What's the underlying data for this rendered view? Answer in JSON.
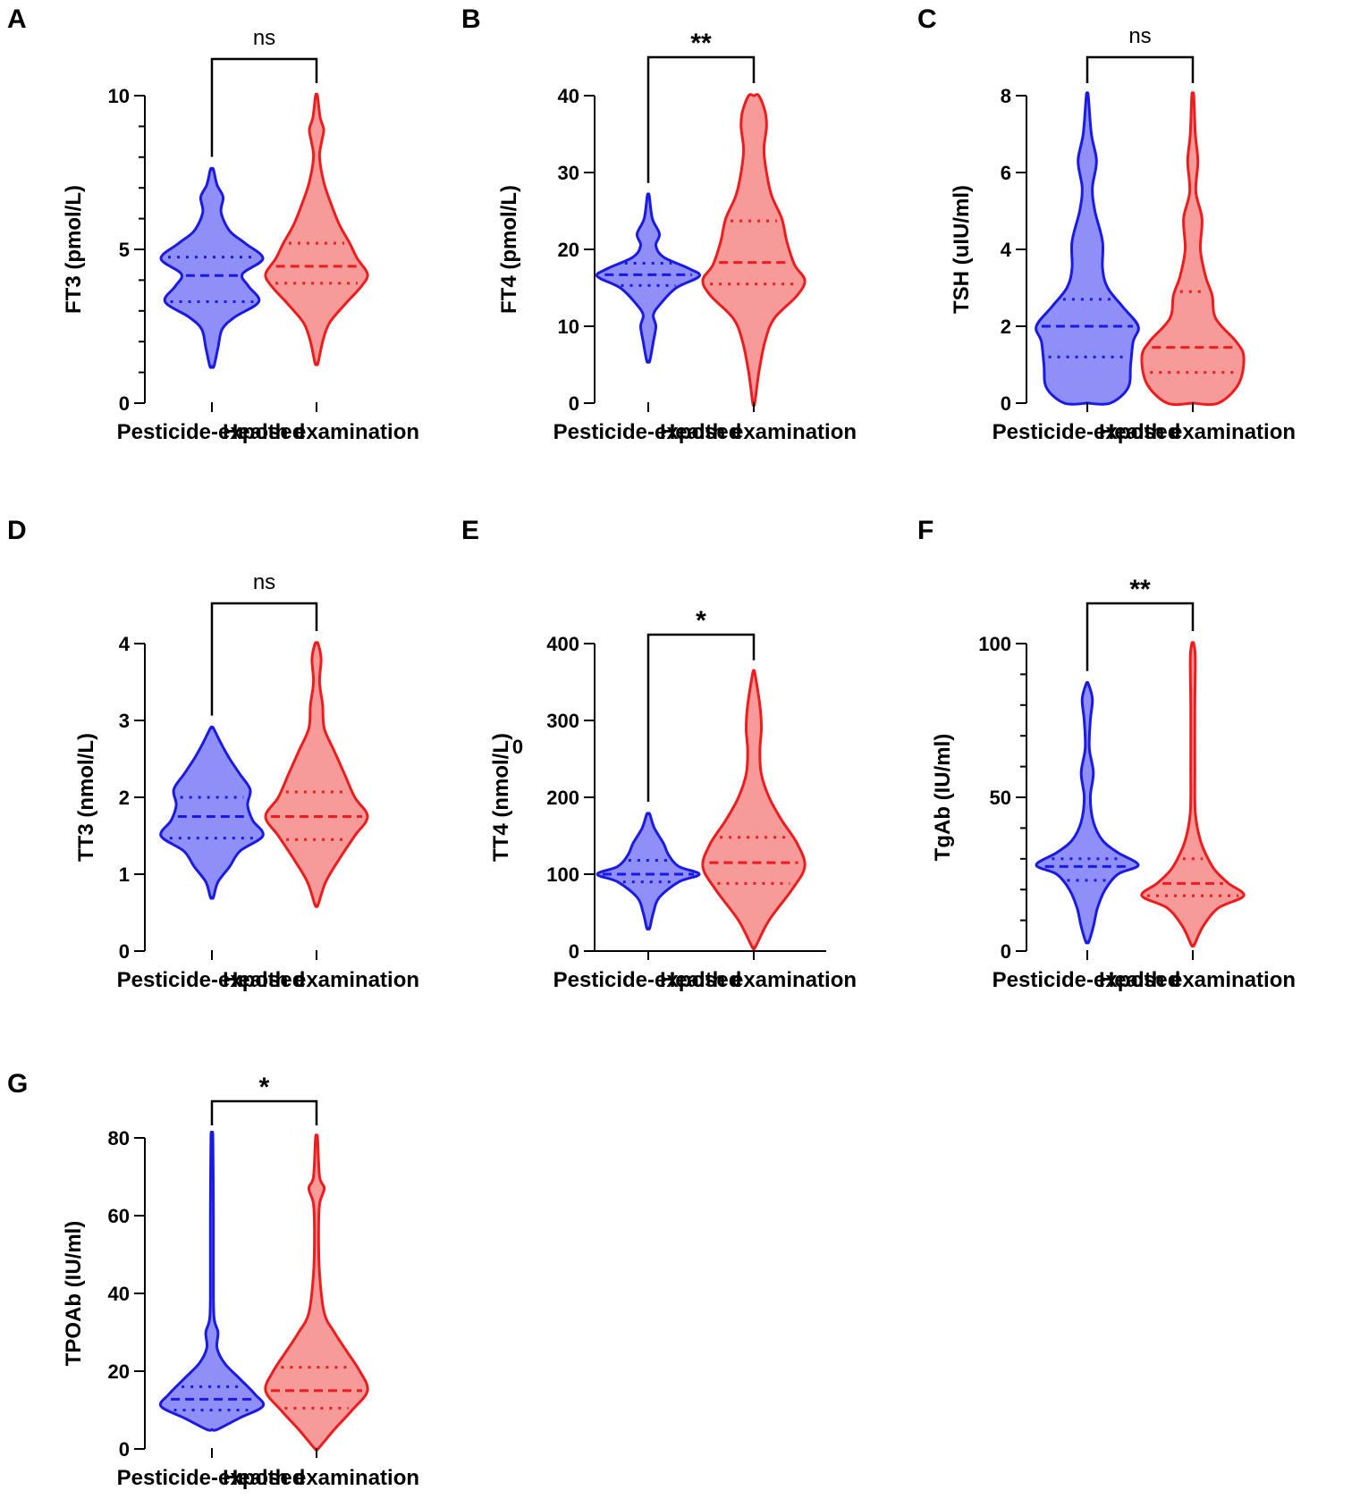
{
  "colors": {
    "pesticide_fill": "#8f8ff7",
    "pesticide_line": "#1a1ae6",
    "health_fill": "#f79a9a",
    "health_line": "#ee1c1c",
    "axis": "#000000"
  },
  "stray_text": "0",
  "chart_data": [
    {
      "panel": "A",
      "type": "violin",
      "ylabel": "FT3 (pmol/L)",
      "ylim": [
        0,
        10
      ],
      "yticks": [
        0,
        5,
        10
      ],
      "yticks_labels": [
        "0",
        "5",
        "10"
      ],
      "minor_tick_step": 1,
      "categories": [
        "Pesticide-exposed",
        "Health examination"
      ],
      "significance": "ns",
      "series": [
        {
          "name": "Pesticide-exposed",
          "min": 1.2,
          "max": 7.6,
          "median": 4.15,
          "q1": 3.3,
          "q3": 4.75,
          "profile": [
            [
              1.2,
              0.04
            ],
            [
              1.8,
              0.12
            ],
            [
              2.4,
              0.2
            ],
            [
              2.8,
              0.45
            ],
            [
              3.3,
              0.92
            ],
            [
              3.8,
              0.72
            ],
            [
              4.2,
              0.6
            ],
            [
              4.7,
              1.0
            ],
            [
              5.2,
              0.65
            ],
            [
              5.6,
              0.35
            ],
            [
              6.2,
              0.18
            ],
            [
              6.7,
              0.22
            ],
            [
              7.1,
              0.1
            ],
            [
              7.6,
              0.03
            ]
          ]
        },
        {
          "name": "Health examination",
          "min": 1.3,
          "max": 10,
          "median": 4.45,
          "q1": 3.9,
          "q3": 5.2,
          "profile": [
            [
              1.3,
              0.03
            ],
            [
              2.0,
              0.12
            ],
            [
              2.6,
              0.25
            ],
            [
              3.2,
              0.55
            ],
            [
              3.8,
              0.88
            ],
            [
              4.2,
              1.0
            ],
            [
              4.7,
              0.8
            ],
            [
              5.2,
              0.65
            ],
            [
              5.8,
              0.45
            ],
            [
              6.5,
              0.28
            ],
            [
              7.2,
              0.14
            ],
            [
              8.0,
              0.06
            ],
            [
              8.5,
              0.1
            ],
            [
              8.9,
              0.14
            ],
            [
              9.3,
              0.07
            ],
            [
              10.0,
              0.02
            ]
          ]
        }
      ]
    },
    {
      "panel": "B",
      "type": "violin",
      "ylabel": "FT4 (pmol/L)",
      "ylim": [
        0,
        40
      ],
      "yticks": [
        0,
        10,
        20,
        30,
        40
      ],
      "yticks_labels": [
        "0",
        "10",
        "20",
        "30",
        "40"
      ],
      "categories": [
        "Pesticide-exposed",
        "Health examination"
      ],
      "significance": "**",
      "series": [
        {
          "name": "Pesticide-exposed",
          "min": 5.5,
          "max": 27,
          "median": 16.7,
          "q1": 15.3,
          "q3": 18.2,
          "profile": [
            [
              5.5,
              0.03
            ],
            [
              8,
              0.1
            ],
            [
              10,
              0.15
            ],
            [
              11.5,
              0.1
            ],
            [
              13,
              0.25
            ],
            [
              15,
              0.55
            ],
            [
              16.5,
              1.0
            ],
            [
              17.5,
              0.8
            ],
            [
              19,
              0.3
            ],
            [
              20.5,
              0.15
            ],
            [
              22,
              0.22
            ],
            [
              24,
              0.08
            ],
            [
              27,
              0.02
            ]
          ]
        },
        {
          "name": "Health examination",
          "min": 0,
          "max": 40,
          "median": 18.3,
          "q1": 15.5,
          "q3": 23.7,
          "profile": [
            [
              0,
              0.02
            ],
            [
              4,
              0.1
            ],
            [
              8,
              0.22
            ],
            [
              11,
              0.4
            ],
            [
              14,
              0.85
            ],
            [
              16,
              1.0
            ],
            [
              18,
              0.8
            ],
            [
              21,
              0.65
            ],
            [
              24,
              0.55
            ],
            [
              27,
              0.35
            ],
            [
              30,
              0.25
            ],
            [
              33,
              0.2
            ],
            [
              36,
              0.25
            ],
            [
              38,
              0.22
            ],
            [
              40,
              0.1
            ]
          ]
        }
      ]
    },
    {
      "panel": "C",
      "type": "violin",
      "ylabel": "TSH (uIU/ml)",
      "ylim": [
        0,
        8
      ],
      "yticks": [
        0,
        2,
        4,
        6,
        8
      ],
      "yticks_labels": [
        "0",
        "2",
        "4",
        "6",
        "8"
      ],
      "categories": [
        "Pesticide-exposed",
        "Health examination"
      ],
      "significance": "ns",
      "series": [
        {
          "name": "Pesticide-exposed",
          "min": 0,
          "max": 8,
          "median": 2.0,
          "q1": 1.2,
          "q3": 2.7,
          "profile": [
            [
              0,
              0.45
            ],
            [
              0.4,
              0.8
            ],
            [
              1.0,
              0.85
            ],
            [
              1.6,
              0.9
            ],
            [
              2.0,
              1.0
            ],
            [
              2.5,
              0.7
            ],
            [
              3.0,
              0.4
            ],
            [
              3.5,
              0.3
            ],
            [
              4.2,
              0.3
            ],
            [
              5.0,
              0.15
            ],
            [
              5.6,
              0.1
            ],
            [
              6.3,
              0.18
            ],
            [
              7.0,
              0.08
            ],
            [
              8.0,
              0.02
            ]
          ]
        },
        {
          "name": "Health examination",
          "min": 0,
          "max": 8,
          "median": 1.45,
          "q1": 0.8,
          "q3": 2.9,
          "profile": [
            [
              0,
              0.5
            ],
            [
              0.5,
              0.9
            ],
            [
              1.2,
              1.0
            ],
            [
              1.6,
              0.85
            ],
            [
              2.2,
              0.45
            ],
            [
              2.8,
              0.38
            ],
            [
              3.3,
              0.25
            ],
            [
              4.0,
              0.15
            ],
            [
              4.8,
              0.18
            ],
            [
              5.5,
              0.06
            ],
            [
              6.3,
              0.1
            ],
            [
              7.0,
              0.05
            ],
            [
              8.0,
              0.02
            ]
          ]
        }
      ]
    },
    {
      "panel": "D",
      "type": "violin",
      "ylabel": "TT3 (nmol/L)",
      "ylim": [
        0,
        4
      ],
      "yticks": [
        0,
        1,
        2,
        3,
        4
      ],
      "yticks_labels": [
        "0",
        "1",
        "2",
        "3",
        "4"
      ],
      "categories": [
        "Pesticide-exposed",
        "Health examination"
      ],
      "significance": "ns",
      "series": [
        {
          "name": "Pesticide-exposed",
          "min": 0.7,
          "max": 2.9,
          "median": 1.75,
          "q1": 1.47,
          "q3": 2.0,
          "profile": [
            [
              0.7,
              0.03
            ],
            [
              0.9,
              0.12
            ],
            [
              1.1,
              0.35
            ],
            [
              1.3,
              0.55
            ],
            [
              1.5,
              1.0
            ],
            [
              1.7,
              0.8
            ],
            [
              1.9,
              0.7
            ],
            [
              2.1,
              0.75
            ],
            [
              2.3,
              0.55
            ],
            [
              2.5,
              0.35
            ],
            [
              2.7,
              0.18
            ],
            [
              2.9,
              0.03
            ]
          ]
        },
        {
          "name": "Health examination",
          "min": 0.6,
          "max": 4.0,
          "median": 1.75,
          "q1": 1.45,
          "q3": 2.07,
          "profile": [
            [
              0.6,
              0.03
            ],
            [
              0.9,
              0.18
            ],
            [
              1.2,
              0.45
            ],
            [
              1.5,
              0.75
            ],
            [
              1.75,
              1.0
            ],
            [
              2.0,
              0.75
            ],
            [
              2.3,
              0.55
            ],
            [
              2.6,
              0.35
            ],
            [
              2.9,
              0.15
            ],
            [
              3.2,
              0.12
            ],
            [
              3.5,
              0.06
            ],
            [
              3.8,
              0.09
            ],
            [
              4.0,
              0.03
            ]
          ]
        }
      ]
    },
    {
      "panel": "E",
      "type": "violin",
      "ylabel": "TT4 (nmol/L)",
      "ylim": [
        0,
        400
      ],
      "yticks": [
        0,
        100,
        200,
        300,
        400
      ],
      "yticks_labels": [
        "0",
        "100",
        "200",
        "300",
        "400"
      ],
      "categories": [
        "Pesticide-exposed",
        "Health examination"
      ],
      "significance": "*",
      "series": [
        {
          "name": "Pesticide-exposed",
          "min": 30,
          "max": 178,
          "median": 100,
          "q1": 90,
          "q3": 118,
          "profile": [
            [
              30,
              0.03
            ],
            [
              50,
              0.1
            ],
            [
              70,
              0.22
            ],
            [
              90,
              0.6
            ],
            [
              100,
              1.0
            ],
            [
              110,
              0.6
            ],
            [
              125,
              0.4
            ],
            [
              140,
              0.3
            ],
            [
              160,
              0.12
            ],
            [
              178,
              0.03
            ]
          ]
        },
        {
          "name": "Health examination",
          "min": 5,
          "max": 362,
          "median": 115,
          "q1": 88,
          "q3": 148,
          "profile": [
            [
              5,
              0.03
            ],
            [
              40,
              0.3
            ],
            [
              80,
              0.75
            ],
            [
              110,
              1.0
            ],
            [
              140,
              0.85
            ],
            [
              170,
              0.55
            ],
            [
              200,
              0.3
            ],
            [
              230,
              0.15
            ],
            [
              260,
              0.12
            ],
            [
              290,
              0.15
            ],
            [
              320,
              0.12
            ],
            [
              362,
              0.02
            ]
          ]
        }
      ]
    },
    {
      "panel": "F",
      "type": "violin",
      "ylabel": "TgAb (IU/ml)",
      "ylim": [
        0,
        100
      ],
      "yticks": [
        0,
        50,
        100
      ],
      "yticks_labels": [
        "0",
        "50",
        "100"
      ],
      "minor_tick_step": 10,
      "categories": [
        "Pesticide-exposed",
        "Health examination"
      ],
      "significance": "**",
      "series": [
        {
          "name": "Pesticide-exposed",
          "min": 3,
          "max": 87,
          "median": 27.5,
          "q1": 23,
          "q3": 30,
          "profile": [
            [
              3,
              0.03
            ],
            [
              8,
              0.12
            ],
            [
              14,
              0.2
            ],
            [
              20,
              0.35
            ],
            [
              25,
              0.6
            ],
            [
              28,
              1.0
            ],
            [
              32,
              0.6
            ],
            [
              36,
              0.3
            ],
            [
              42,
              0.12
            ],
            [
              50,
              0.06
            ],
            [
              58,
              0.12
            ],
            [
              66,
              0.04
            ],
            [
              75,
              0.06
            ],
            [
              82,
              0.1
            ],
            [
              87,
              0.02
            ]
          ]
        },
        {
          "name": "Health examination",
          "min": 2,
          "max": 100,
          "median": 22,
          "q1": 18,
          "q3": 30,
          "profile": [
            [
              2,
              0.03
            ],
            [
              8,
              0.2
            ],
            [
              14,
              0.5
            ],
            [
              18,
              1.0
            ],
            [
              22,
              0.7
            ],
            [
              26,
              0.45
            ],
            [
              30,
              0.3
            ],
            [
              36,
              0.15
            ],
            [
              45,
              0.05
            ],
            [
              60,
              0.04
            ],
            [
              80,
              0.04
            ],
            [
              95,
              0.05
            ],
            [
              100,
              0.02
            ]
          ]
        }
      ]
    },
    {
      "panel": "G",
      "type": "violin",
      "ylabel": "TPOAb (IU/ml)",
      "ylim": [
        0,
        80
      ],
      "yticks": [
        0,
        20,
        40,
        60,
        80
      ],
      "yticks_labels": [
        "0",
        "20",
        "40",
        "60",
        "80"
      ],
      "categories": [
        "Pesticide-exposed",
        "Health examination"
      ],
      "significance": "*",
      "series": [
        {
          "name": "Pesticide-exposed",
          "min": 5,
          "max": 80,
          "median": 12.8,
          "q1": 10,
          "q3": 16,
          "profile": [
            [
              5,
              0.1
            ],
            [
              8,
              0.55
            ],
            [
              11,
              1.0
            ],
            [
              14,
              0.85
            ],
            [
              18,
              0.55
            ],
            [
              22,
              0.25
            ],
            [
              26,
              0.1
            ],
            [
              30,
              0.12
            ],
            [
              34,
              0.04
            ],
            [
              45,
              0.03
            ],
            [
              60,
              0.03
            ],
            [
              80,
              0.02
            ]
          ]
        },
        {
          "name": "Health examination",
          "min": 0,
          "max": 80,
          "median": 15,
          "q1": 10.5,
          "q3": 21,
          "profile": [
            [
              0,
              0.03
            ],
            [
              5,
              0.35
            ],
            [
              10,
              0.7
            ],
            [
              15,
              1.0
            ],
            [
              20,
              0.85
            ],
            [
              25,
              0.6
            ],
            [
              30,
              0.35
            ],
            [
              35,
              0.15
            ],
            [
              45,
              0.06
            ],
            [
              55,
              0.04
            ],
            [
              63,
              0.06
            ],
            [
              67,
              0.15
            ],
            [
              70,
              0.06
            ],
            [
              80,
              0.02
            ]
          ]
        }
      ]
    }
  ]
}
